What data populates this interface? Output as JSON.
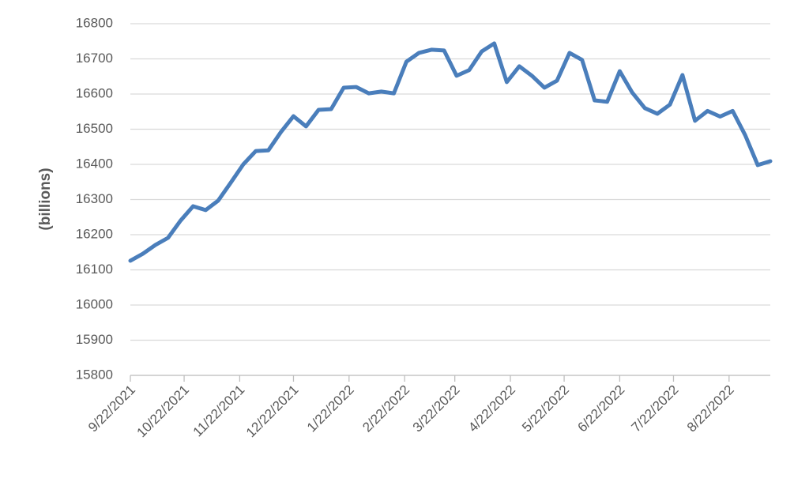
{
  "chart_data": {
    "type": "line",
    "y_label": "(billions)",
    "x": [
      "9/22/2021",
      "9/29/2021",
      "10/6/2021",
      "10/13/2021",
      "10/20/2021",
      "10/27/2021",
      "11/3/2021",
      "11/10/2021",
      "11/17/2021",
      "11/24/2021",
      "12/1/2021",
      "12/8/2021",
      "12/15/2021",
      "12/22/2021",
      "12/29/2021",
      "1/5/2022",
      "1/12/2022",
      "1/19/2022",
      "1/26/2022",
      "2/2/2022",
      "2/9/2022",
      "2/16/2022",
      "2/23/2022",
      "3/2/2022",
      "3/9/2022",
      "3/16/2022",
      "3/23/2022",
      "3/30/2022",
      "4/6/2022",
      "4/13/2022",
      "4/20/2022",
      "4/27/2022",
      "5/4/2022",
      "5/11/2022",
      "5/18/2022",
      "5/25/2022",
      "6/1/2022",
      "6/8/2022",
      "6/15/2022",
      "6/22/2022",
      "6/29/2022",
      "7/6/2022",
      "7/13/2022",
      "7/20/2022",
      "7/27/2022",
      "8/3/2022",
      "8/10/2022",
      "8/17/2022",
      "8/24/2022",
      "8/31/2022",
      "9/7/2022",
      "9/14/2022"
    ],
    "series": [
      {
        "color": "#4a7ebb",
        "values": [
          16126,
          16146,
          16171,
          16191,
          16240,
          16281,
          16270,
          16297,
          16348,
          16400,
          16438,
          16440,
          16492,
          16537,
          16508,
          16555,
          16557,
          16618,
          16620,
          16602,
          16607,
          16602,
          16692,
          16717,
          16726,
          16724,
          16652,
          16668,
          16721,
          16744,
          16634,
          16679,
          16652,
          16618,
          16638,
          16717,
          16697,
          16582,
          16578,
          16665,
          16604,
          16560,
          16544,
          16570,
          16654,
          16524,
          16552,
          16536,
          16552,
          16483,
          16398,
          16409
        ]
      }
    ],
    "xlim": [
      "9/22/2021",
      "9/14/2022"
    ],
    "xticks": [
      "9/22/2021",
      "10/22/2021",
      "11/22/2021",
      "12/22/2021",
      "1/22/2022",
      "2/22/2022",
      "3/22/2022",
      "4/22/2022",
      "5/22/2022",
      "6/22/2022",
      "7/22/2022",
      "8/22/2022"
    ],
    "ylim": [
      15800,
      16800
    ],
    "yticks": [
      15800,
      15900,
      16000,
      16100,
      16200,
      16300,
      16400,
      16500,
      16600,
      16700,
      16800
    ],
    "grid": true
  }
}
